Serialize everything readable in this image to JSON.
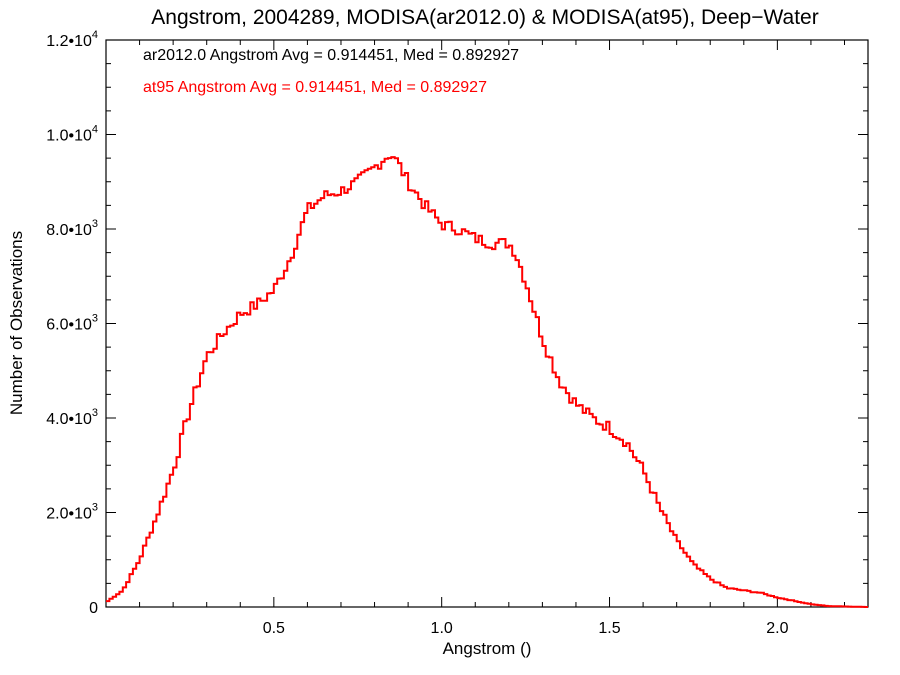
{
  "chart_data": {
    "type": "line",
    "title": "Angstrom, 2004289, MODISA(ar2012.0) & MODISA(at95), Deep−Water",
    "xlabel": "Angstrom ()",
    "ylabel": "Number of Observations",
    "xlim": [
      0.0,
      2.27
    ],
    "ylim": [
      0,
      12000
    ],
    "x_ticks": [
      0.5,
      1.0,
      1.5,
      2.0
    ],
    "x_tick_labels": [
      "0.5",
      "1.0",
      "1.5",
      "2.0"
    ],
    "y_ticks": [
      0,
      2000,
      4000,
      6000,
      8000,
      10000,
      12000
    ],
    "y_tick_labels": [
      {
        "mantissa": "0",
        "exp": ""
      },
      {
        "mantissa": "2.0•10",
        "exp": "3"
      },
      {
        "mantissa": "4.0•10",
        "exp": "3"
      },
      {
        "mantissa": "6.0•10",
        "exp": "3"
      },
      {
        "mantissa": "8.0•10",
        "exp": "3"
      },
      {
        "mantissa": "1.0•10",
        "exp": "4"
      },
      {
        "mantissa": "1.2•10",
        "exp": "4"
      }
    ],
    "legend_text": [
      {
        "text": "ar2012.0 Angstrom Avg = 0.914451, Med = 0.892927",
        "color": "#000000"
      },
      {
        "text": "at95 Angstrom Avg = 0.914451, Med = 0.892927",
        "color": "#ff0000"
      }
    ],
    "grid": false,
    "series": [
      {
        "color": "#ff0000",
        "x": [
          0.0,
          0.05,
          0.1,
          0.15,
          0.2,
          0.25,
          0.3,
          0.35,
          0.4,
          0.45,
          0.5,
          0.55,
          0.6,
          0.65,
          0.7,
          0.75,
          0.8,
          0.83,
          0.85,
          0.87,
          0.9,
          0.95,
          1.0,
          1.05,
          1.1,
          1.15,
          1.2,
          1.22,
          1.25,
          1.3,
          1.35,
          1.4,
          1.45,
          1.5,
          1.55,
          1.6,
          1.65,
          1.7,
          1.75,
          1.8,
          1.85,
          1.9,
          1.95,
          2.0,
          2.05,
          2.1,
          2.15,
          2.27
        ],
        "y": [
          100,
          350,
          1000,
          1900,
          2900,
          4200,
          5300,
          5800,
          6200,
          6400,
          6700,
          7400,
          8400,
          8700,
          8800,
          9000,
          9300,
          9500,
          9600,
          9400,
          9000,
          8500,
          8100,
          8000,
          7800,
          7700,
          7700,
          7500,
          6900,
          5700,
          4800,
          4300,
          4000,
          3800,
          3500,
          2900,
          2100,
          1400,
          900,
          600,
          400,
          350,
          300,
          200,
          130,
          60,
          20,
          0
        ]
      }
    ]
  }
}
